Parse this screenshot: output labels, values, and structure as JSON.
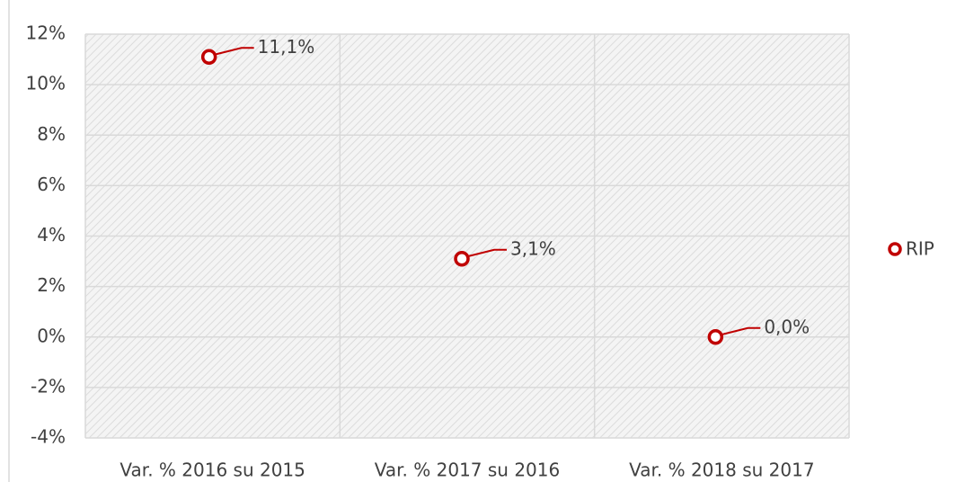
{
  "chart_data": {
    "type": "scatter",
    "categories": [
      "Var. % 2016 su 2015",
      "Var. % 2017 su 2016",
      "Var. % 2018 su 2017"
    ],
    "series": [
      {
        "name": "RIP",
        "color": "#c00000",
        "values": [
          11.1,
          3.1,
          0.0
        ],
        "value_labels": [
          "11,1%",
          "3,1%",
          "0,0%"
        ]
      }
    ],
    "ylim": [
      -4,
      12
    ],
    "yticks": [
      {
        "value": -4,
        "label": "-4%"
      },
      {
        "value": -2,
        "label": "-2%"
      },
      {
        "value": 0,
        "label": "0%"
      },
      {
        "value": 2,
        "label": "2%"
      },
      {
        "value": 4,
        "label": "4%"
      },
      {
        "value": 6,
        "label": "6%"
      },
      {
        "value": 8,
        "label": "8%"
      },
      {
        "value": 10,
        "label": "10%"
      },
      {
        "value": 12,
        "label": "12%"
      }
    ],
    "grid": true,
    "legend": "right"
  }
}
